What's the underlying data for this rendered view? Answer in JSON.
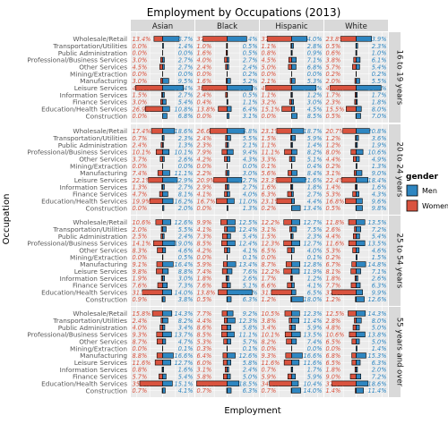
{
  "chart_data": {
    "type": "bar",
    "title": "Employment by Occupations (2013)",
    "xlabel": "Employment",
    "ylabel": "Occupation",
    "columns": [
      "Asian",
      "Black",
      "Hispanic",
      "White"
    ],
    "rows": [
      "16 to 19 years",
      "20 to 24 years",
      "25 to 54 years",
      "55 years and over"
    ],
    "categories": [
      "Wholesale/Retail",
      "Transportation/Utilities",
      "Public Administration",
      "Professional/Business Services",
      "Other Services",
      "Mining/Extraction",
      "Manufacturing",
      "Leisure Services",
      "Information Services",
      "Finance Services",
      "Education/Health Services",
      "Construction"
    ],
    "legend": {
      "title": "gender",
      "items": [
        "Men",
        "Women"
      ],
      "position": "right"
    },
    "colors": {
      "Men": "#2e86c1",
      "Women": "#d9533f"
    },
    "panels": [
      [
        {
          "men": [
            25.7,
            1.4,
            0.0,
            2.7,
            2.7,
            0.0,
            9.5,
            32.4,
            2.7,
            5.4,
            10.8,
            6.8
          ],
          "women": [
            13.4,
            0.0,
            0.0,
            3.0,
            4.5,
            0.0,
            3.0,
            41.8,
            1.5,
            3.0,
            26.9,
            0.0
          ]
        },
        {
          "men": [
            30.4,
            0.5,
            0.5,
            2.7,
            2.4,
            0.2,
            5.2,
            39.2,
            0.5,
            1.1,
            6.4,
            3.1
          ],
          "women": [
            37.5,
            1.0,
            1.6,
            4.0,
            2.4,
            0.0,
            1.6,
            38.6,
            2.4,
            0.4,
            13.8,
            0.0
          ]
        },
        {
          "men": [
            24.0,
            2.8,
            0.9,
            7.1,
            6.8,
            0.0,
            5.3,
            37.9,
            1.2,
            3.0,
            4.5,
            8.5
          ],
          "women": [
            37.9,
            1.1,
            0.8,
            4.5,
            5.0,
            0.0,
            2.1,
            40.4,
            1.1,
            3.2,
            15.1,
            0.0
          ]
        },
        {
          "men": [
            23.9,
            2.3,
            1.0,
            6.1,
            5.4,
            0.2,
            5.5,
            38.7,
            1.7,
            1.8,
            8.0,
            7.0
          ],
          "women": [
            23.8,
            0.5,
            0.6,
            3.8,
            5.7,
            0.2,
            2.0,
            40.5,
            1.7,
            2.3,
            15.5,
            0.5
          ]
        }
      ],
      [
        {
          "men": [
            18.6,
            2.3,
            1.3,
            10.1,
            2.6,
            0.0,
            11.1,
            22.9,
            2.7,
            8.1,
            16.2,
            2.0
          ],
          "women": [
            17.4,
            0.7,
            2.4,
            10.1,
            3.7,
            0.0,
            7.4,
            22.1,
            1.3,
            4.7,
            19.9,
            0.0
          ]
        },
        {
          "men": [
            26.8,
            5.5,
            2.1,
            9.4,
            4.3,
            0.0,
            3.0,
            22.7,
            2.7,
            4.0,
            11.0,
            1.3
          ],
          "women": [
            26.6,
            2.4,
            2.3,
            7.9,
            4.2,
            0.0,
            2.2,
            20.9,
            2.9,
            4.1,
            16.7,
            0.0
          ]
        },
        {
          "men": [
            18.7,
            5.9,
            1.4,
            8.2,
            5.1,
            0.4,
            8.4,
            21.6,
            1.8,
            2.7,
            4.4,
            13.4
          ],
          "women": [
            23.1,
            1.5,
            1.1,
            11.1,
            3.3,
            0.1,
            5.6,
            23.3,
            1.6,
            6.3,
            23.1,
            0.2
          ]
        },
        {
          "men": [
            20.8,
            3.6,
            1.9,
            10.6,
            4.9,
            1.3,
            9.0,
            18.4,
            1.6,
            4.3,
            9.6,
            9.8
          ],
          "women": [
            20.7,
            1.2,
            1.2,
            8.0,
            4.4,
            0.2,
            3.1,
            22.4,
            1.4,
            5.3,
            16.8,
            0.5
          ]
        }
      ],
      [
        {
          "men": [
            12.6,
            5.5,
            2.4,
            19.0,
            4.6,
            0.5,
            16.4,
            8.8,
            3.0,
            7.3,
            14.0,
            3.8
          ],
          "women": [
            10.6,
            2.0,
            2.5,
            14.1,
            8.3,
            0.0,
            9.1,
            9.8,
            1.9,
            7.6,
            31.6,
            0.9
          ]
        },
        {
          "men": [
            12.5,
            12.4,
            5.4,
            12.4,
            4.1,
            0.1,
            13.4,
            7.6,
            2.6,
            5.1,
            38.8,
            6.3
          ],
          "women": [
            9.9,
            4.1,
            7.3,
            8.5,
            4.2,
            0.0,
            5.9,
            7.4,
            1.8,
            7.6,
            13.8,
            0.5
          ]
        },
        {
          "men": [
            12.7,
            7.5,
            2.3,
            12.7,
            4.0,
            0.1,
            12.8,
            11.9,
            1.2,
            4.1,
            6.5,
            18.0
          ],
          "women": [
            12.2,
            3.1,
            1.5,
            12.3,
            6.5,
            0.0,
            8.7,
            12.2,
            1.7,
            6.6,
            31.4,
            1.2
          ]
        },
        {
          "men": [
            13.5,
            7.2,
            5.4,
            13.5,
            4.6,
            1.5,
            14.8,
            7.1,
            2.6,
            6.3,
            9.9,
            12.6
          ],
          "women": [
            11.8,
            2.6,
            4.4,
            11.6,
            5.3,
            0.2,
            6.7,
            8.1,
            1.8,
            7.7,
            37.6,
            1.2
          ]
        }
      ],
      [
        {
          "men": [
            14.3,
            8.2,
            3.4,
            13.7,
            4.7,
            0.1,
            16.6,
            12.7,
            1.6,
            5.4,
            15.1,
            4.1
          ],
          "women": [
            15.8,
            2.4,
            4.0,
            9.3,
            8.7,
            0.0,
            8.8,
            11.6,
            0.8,
            5.7,
            35.5,
            0.7
          ]
        },
        {
          "men": [
            9.2,
            12.3,
            5.8,
            11.1,
            5.7,
            0.1,
            12.6,
            5.8,
            2.4,
            5.0,
            18.5,
            6.3
          ],
          "women": [
            7.7,
            4.4,
            8.6,
            8.5,
            5.3,
            0.3,
            6.4,
            6.0,
            3.1,
            5.8,
            47.3,
            0.7
          ]
        },
        {
          "men": [
            12.3,
            11.4,
            5.9,
            13.5,
            7.4,
            0.0,
            16.6,
            11.6,
            1.7,
            5.9,
            10.4,
            14.0
          ],
          "women": [
            10.5,
            3.8,
            3.4,
            10.1,
            8.2,
            0.0,
            9.3,
            11.6,
            0.7,
            5.9,
            34.5,
            0.7
          ]
        },
        {
          "men": [
            14.3,
            8.0,
            5.0,
            13.8,
            5.0,
            1.4,
            15.3,
            6.3,
            2.0,
            7.2,
            18.6,
            11.4
          ],
          "women": [
            12.5,
            2.8,
            4.8,
            10.6,
            6.5,
            0.0,
            6.8,
            6.5,
            1.8,
            9.0,
            37.6,
            1.4
          ]
        }
      ]
    ]
  }
}
